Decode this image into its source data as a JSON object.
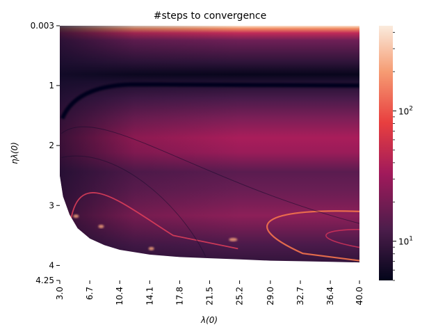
{
  "chart_data": {
    "type": "heatmap",
    "title": "#steps to convergence",
    "xlabel": "λ(0)",
    "ylabel": "ηλ(0)",
    "x_ticks": [
      "3.0",
      "6.7",
      "10.4",
      "14.1",
      "17.8",
      "21.5",
      "25.2",
      "29.0",
      "32.7",
      "36.4",
      "40.0"
    ],
    "y_ticks": [
      "0.003",
      "1",
      "2",
      "3",
      "4",
      "4.25"
    ],
    "y_tick_values": [
      0.003,
      1,
      2,
      3,
      4,
      4.25
    ],
    "x_range": [
      3.0,
      40.0
    ],
    "y_range": [
      0.003,
      4.25
    ],
    "colorbar": {
      "scale": "log",
      "range": [
        5,
        450
      ],
      "tick_labels": [
        "10^1",
        "10^2"
      ],
      "tick_values": [
        10,
        100
      ],
      "colormap": "rocket",
      "colors": [
        "#03051a",
        "#4c1d4b",
        "#a11a5b",
        "#e83f3f",
        "#f69c73",
        "#faebdd"
      ]
    }
  }
}
